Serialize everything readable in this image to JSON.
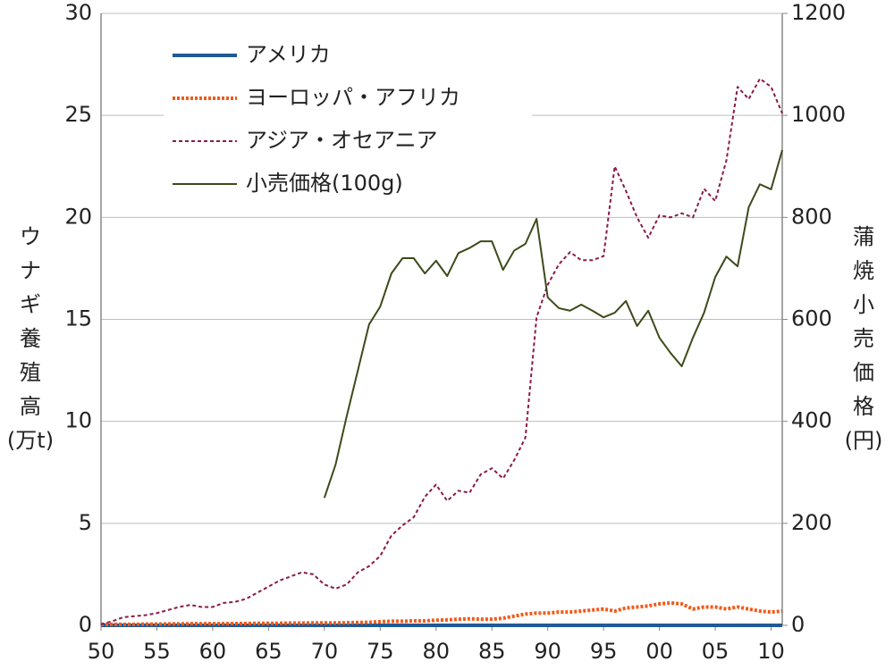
{
  "chart_data": {
    "type": "line",
    "y_label": "ウナギ養殖高(万t)",
    "y2_label": "蒲焼小売価格(円)",
    "categories": [
      "50",
      null,
      null,
      null,
      null,
      "55",
      null,
      null,
      null,
      null,
      "60",
      null,
      null,
      null,
      null,
      "65",
      null,
      null,
      null,
      null,
      "70",
      null,
      null,
      null,
      null,
      "75",
      null,
      null,
      null,
      null,
      "80",
      null,
      null,
      null,
      null,
      "85",
      null,
      null,
      null,
      null,
      "90",
      null,
      null,
      null,
      null,
      "95",
      null,
      null,
      null,
      null,
      "00",
      null,
      null,
      null,
      null,
      "05",
      null,
      null,
      null,
      null,
      "10",
      null
    ],
    "ylim": [
      0,
      30
    ],
    "yticks": [
      0,
      5,
      10,
      15,
      20,
      25,
      30
    ],
    "y2lim": [
      0,
      1200
    ],
    "y2ticks": [
      0,
      200,
      400,
      600,
      800,
      1000,
      1200
    ],
    "grid": true,
    "legend": "upper left",
    "series": [
      {
        "name": "アメリカ",
        "color": "#1f5a96",
        "line_style": "solid",
        "linewidth": 4,
        "values": [
          0,
          0,
          0,
          0,
          0,
          0,
          0,
          0,
          0,
          0,
          0,
          0,
          0,
          0,
          0,
          0,
          0,
          0,
          0,
          0,
          0,
          0,
          0,
          0,
          0,
          0,
          0,
          0,
          0,
          0,
          0,
          0,
          0,
          0,
          0,
          0,
          0,
          0,
          0,
          0,
          0,
          0,
          0,
          0,
          0,
          0,
          0,
          0,
          0,
          0,
          0,
          0,
          0,
          0,
          0,
          0,
          0,
          0,
          0,
          0,
          0,
          0
        ]
      },
      {
        "name": "ヨーロッパ・アフリカ",
        "color": "#f25a1a",
        "line_style": "dotted",
        "linewidth": 4,
        "values": [
          0.05,
          0.05,
          0.05,
          0.05,
          0.06,
          0.06,
          0.07,
          0.07,
          0.08,
          0.08,
          0.08,
          0.08,
          0.09,
          0.09,
          0.1,
          0.1,
          0.1,
          0.11,
          0.11,
          0.12,
          0.12,
          0.12,
          0.13,
          0.14,
          0.15,
          0.18,
          0.2,
          0.2,
          0.22,
          0.22,
          0.25,
          0.27,
          0.3,
          0.32,
          0.3,
          0.3,
          0.35,
          0.45,
          0.55,
          0.6,
          0.6,
          0.65,
          0.65,
          0.7,
          0.75,
          0.8,
          0.7,
          0.85,
          0.9,
          0.95,
          1.05,
          1.1,
          1.05,
          0.8,
          0.9,
          0.9,
          0.8,
          0.9,
          0.8,
          0.7,
          0.65,
          0.7
        ]
      },
      {
        "name": "アジア・オセアニア",
        "color": "#8b1a4a",
        "line_style": "dashed",
        "linewidth": 2,
        "values": [
          0.05,
          0.2,
          0.4,
          0.45,
          0.5,
          0.6,
          0.75,
          0.9,
          1.0,
          0.9,
          0.9,
          1.1,
          1.15,
          1.3,
          1.6,
          1.9,
          2.2,
          2.4,
          2.6,
          2.5,
          2.0,
          1.8,
          2.0,
          2.6,
          2.9,
          3.4,
          4.4,
          4.9,
          5.3,
          6.3,
          6.9,
          6.1,
          6.6,
          6.5,
          7.4,
          7.7,
          7.2,
          8.1,
          9.2,
          15.1,
          16.7,
          17.7,
          18.3,
          17.9,
          17.9,
          18.1,
          22.5,
          21.3,
          20.0,
          19.0,
          20.1,
          20.0,
          20.2,
          20.0,
          21.4,
          20.8,
          22.8,
          26.4,
          25.8,
          26.8,
          26.4,
          25.1
        ]
      },
      {
        "name": "小売価格(100g)",
        "color": "#3d4a1a",
        "line_style": "solid",
        "linewidth": 2,
        "axis": "y2",
        "values": [
          null,
          null,
          null,
          null,
          null,
          null,
          null,
          null,
          null,
          null,
          null,
          null,
          null,
          null,
          null,
          null,
          null,
          null,
          null,
          null,
          250,
          315,
          410,
          500,
          590,
          625,
          690,
          720,
          720,
          690,
          715,
          685,
          730,
          740,
          753,
          753,
          697,
          735,
          748,
          797,
          643,
          622,
          617,
          629,
          617,
          604,
          613,
          636,
          587,
          617,
          564,
          534,
          508,
          564,
          613,
          683,
          723,
          704,
          820,
          865,
          855,
          932
        ]
      }
    ]
  }
}
